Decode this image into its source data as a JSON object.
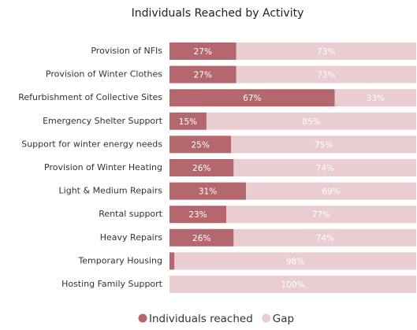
{
  "chart_data": {
    "type": "bar",
    "orientation": "horizontal",
    "stacked": true,
    "title": "Individuals Reached by Activity",
    "categories": [
      "Provision of NFIs",
      "Provision of Winter Clothes",
      "Refurbishment of Collective Sites",
      "Emergency Shelter Support",
      "Support for winter energy needs",
      "Provision of Winter Heating",
      "Light & Medium Repairs",
      "Rental support",
      "Heavy Repairs",
      "Temporary Housing",
      "Hosting Family Support"
    ],
    "series": [
      {
        "name": "Individuals reached",
        "color": "#b5676e",
        "values": [
          27,
          27,
          67,
          15,
          25,
          26,
          31,
          23,
          26,
          2,
          0
        ],
        "value_labels": [
          "27%",
          "27%",
          "67%",
          "15%",
          "25%",
          "26%",
          "31%",
          "23%",
          "26%",
          null,
          null
        ]
      },
      {
        "name": "Gap",
        "color": "#e9cdd0",
        "values": [
          73,
          73,
          33,
          85,
          75,
          74,
          69,
          77,
          74,
          98,
          100
        ],
        "value_labels": [
          "73%",
          "73%",
          "33%",
          "85%",
          "75%",
          "74%",
          "69%",
          "77%",
          "74%",
          "98%",
          "100%"
        ]
      }
    ],
    "xlim": [
      0,
      100
    ]
  }
}
